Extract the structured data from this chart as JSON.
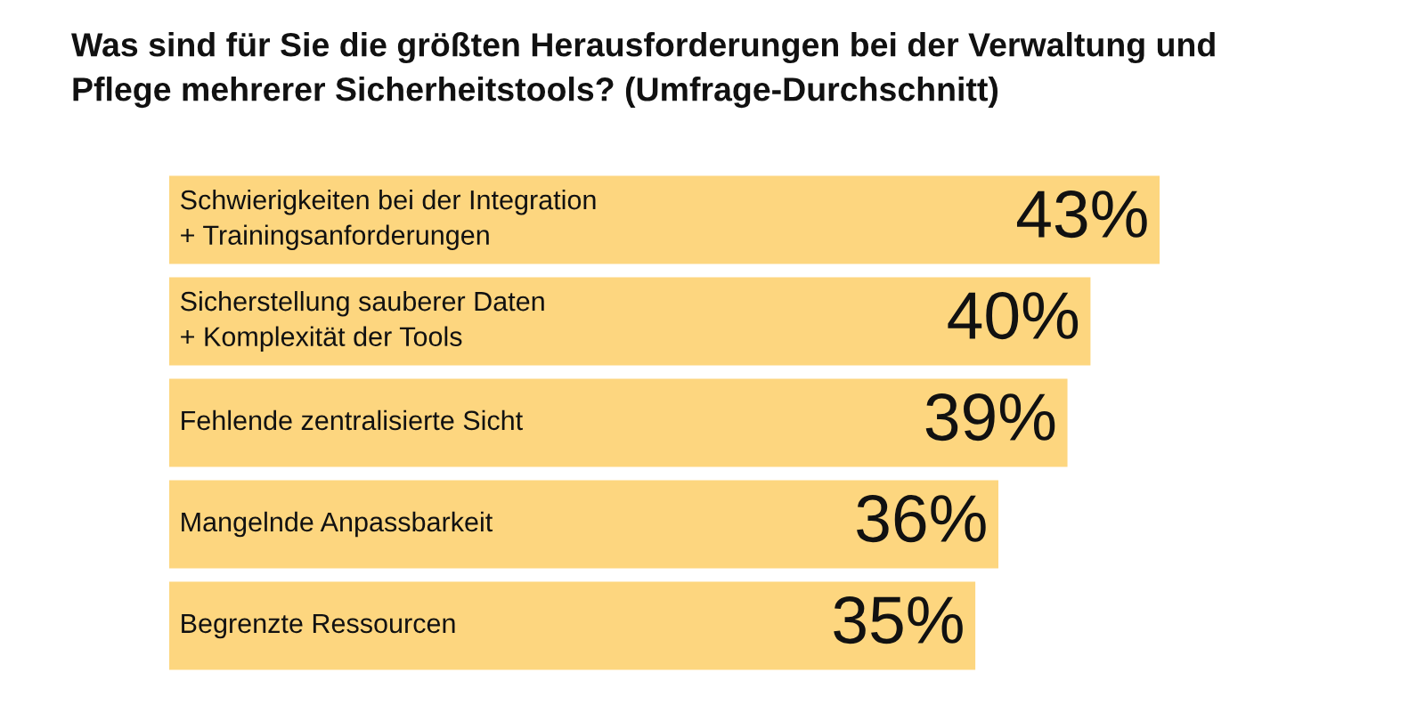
{
  "chart_data": {
    "type": "bar",
    "orientation": "horizontal",
    "title": "Was sind für Sie die größten Herausforderungen bei der Verwaltung und\nPflege mehrerer Sicherheitstools? (Umfrage-Durchschnitt)",
    "categories": [
      "Schwierigkeiten bei der Integration\n+ Trainingsanforderungen",
      "Sicherstellung sauberer Daten\n+ Komplexität der Tools",
      "Fehlende zentralisierte Sicht",
      "Mangelnde Anpassbarkeit",
      "Begrenzte Ressourcen"
    ],
    "values": [
      43,
      40,
      39,
      36,
      35
    ],
    "value_labels": [
      "43%",
      "40%",
      "39%",
      "36%",
      "35%"
    ],
    "color": "#fdd67f"
  }
}
